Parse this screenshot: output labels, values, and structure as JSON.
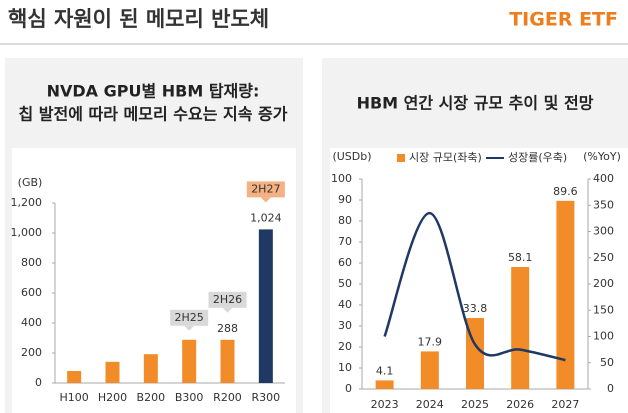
{
  "header": {
    "title": "핵심 자원이 된 메모리 반도체",
    "logo": "TIGER ETF"
  },
  "chart_data": [
    {
      "type": "bar",
      "title": [
        "NVDA GPU별 HBM 탑재량:",
        "칩 발전에 따라 메모리 수요는 지속 증가"
      ],
      "y_unit": "(GB)",
      "categories": [
        "H100",
        "H200",
        "B200",
        "B300",
        "R200",
        "R300"
      ],
      "values": [
        80,
        141,
        192,
        288,
        288,
        1024
      ],
      "value_labels": [
        null,
        null,
        null,
        null,
        "288",
        "1,024"
      ],
      "colors": [
        "#f28c28",
        "#f28c28",
        "#f28c28",
        "#f28c28",
        "#f28c28",
        "#1f3864"
      ],
      "ylim": [
        0,
        1200
      ],
      "yticks": [
        0,
        200,
        400,
        600,
        800,
        {
          "value": 1000,
          "label": "1,000"
        },
        {
          "value": 1200,
          "label": "1,200"
        }
      ],
      "annotations": [
        {
          "text": "2H25",
          "category": "B300",
          "color": "#d9d9d9"
        },
        {
          "text": "2H26",
          "category": "R200",
          "color": "#d9d9d9"
        },
        {
          "text": "2H27",
          "category": "R300",
          "color": "#f4b183"
        }
      ]
    },
    {
      "type": "combo",
      "title": [
        "HBM 연간 시장 규모 추이 및 전망"
      ],
      "y_unit": "(USDb)",
      "y2_unit": "(%YoY)",
      "categories": [
        "2023",
        "2024",
        "2025",
        "2026",
        "2027"
      ],
      "series": [
        {
          "name": "시장 규모(좌축)",
          "kind": "bar",
          "color": "#f28c28",
          "values": [
            4.1,
            17.9,
            33.8,
            58.1,
            89.6
          ]
        },
        {
          "name": "성장률(우축)",
          "kind": "line",
          "axis": "y2",
          "color": "#1f3864",
          "values": [
            100,
            335,
            85,
            75,
            55
          ]
        }
      ],
      "ylim": [
        0,
        100
      ],
      "yticks": [
        0,
        10,
        20,
        30,
        40,
        50,
        60,
        70,
        80,
        90,
        100
      ],
      "y2lim": [
        0,
        400
      ],
      "y2ticks": [
        0,
        50,
        100,
        150,
        200,
        250,
        300,
        350,
        400
      ]
    }
  ]
}
